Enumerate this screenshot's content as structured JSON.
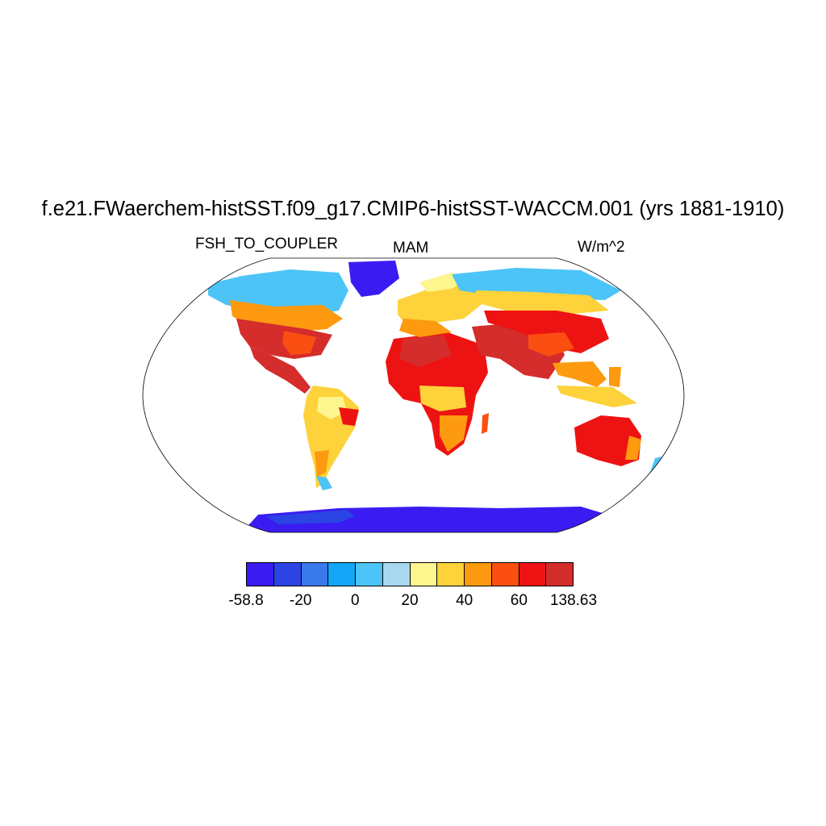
{
  "title": "f.e21.FWaerchem-histSST.f09_g17.CMIP6-histSST-WACCM.001 (yrs 1881-1910)",
  "left_label": "FSH_TO_COUPLER",
  "center_label": "MAM",
  "right_label": "W/m^2",
  "colorbar": {
    "colors": [
      "#3a1cf2",
      "#2b44e3",
      "#3a79ec",
      "#14a5f7",
      "#4cc4f7",
      "#a8d8f0",
      "#fdf58e",
      "#fdd23a",
      "#fd9a0f",
      "#fb4f12",
      "#ee1313",
      "#d52c2c"
    ],
    "tick_labels": [
      "-58.8",
      "-20",
      "0",
      "20",
      "40",
      "60",
      "138.63"
    ]
  }
}
